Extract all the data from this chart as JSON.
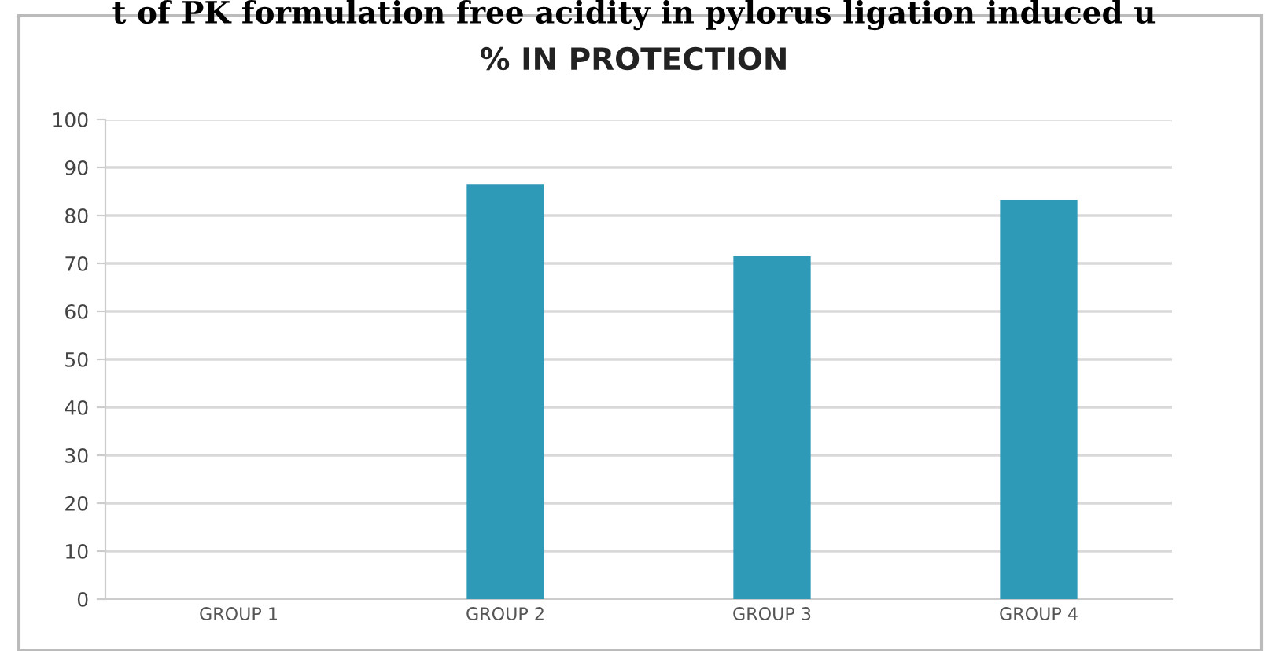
{
  "chart_data": {
    "type": "bar",
    "title": "% IN PROTECTION",
    "annotations": [
      "t of PK formulation free acidity in pylorus ligation induced u"
    ],
    "categories": [
      "GROUP 1",
      "GROUP 2",
      "GROUP 3",
      "GROUP 4"
    ],
    "values": [
      0,
      86.5,
      71.5,
      83.2
    ],
    "color": "#2e9ab8",
    "ylim": [
      0,
      100
    ],
    "yticks": [
      0,
      10,
      20,
      30,
      40,
      50,
      60,
      70,
      80,
      90,
      100
    ],
    "grid": "y"
  }
}
